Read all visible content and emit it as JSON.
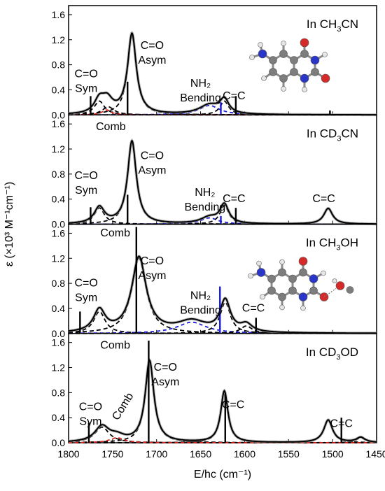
{
  "chart_data": {
    "type": "line",
    "xlabel": "E/hc (cm⁻¹)",
    "ylabel": "ε (×10³ M⁻¹cm⁻¹)",
    "xlim": [
      1800,
      1450
    ],
    "ylim": [
      0,
      1.7
    ],
    "xticks": [
      "1800",
      "1750",
      "1700",
      "1650",
      "1600",
      "1550",
      "1500",
      "1450"
    ],
    "yticks": [
      "0.0",
      "0.4",
      "0.8",
      "1.2",
      "1.6"
    ],
    "colors": {
      "exp": "#000000",
      "fit": "#000000",
      "nh2": "#1a1adb",
      "comb": "#e0201b",
      "grey": "#9a9a9a"
    },
    "panels": [
      {
        "solvent": {
          "pre": "In CH",
          "sub": "3",
          "post": "CN"
        },
        "peaks": [
          {
            "c": 1765,
            "h": 0.22,
            "w": 7,
            "k": "fit"
          },
          {
            "c": 1755,
            "h": 0.13,
            "w": 8,
            "k": "fit"
          },
          {
            "c": 1728,
            "h": 1.28,
            "w": 6,
            "k": "fit"
          },
          {
            "c": 1640,
            "h": 0.15,
            "w": 14,
            "k": "nh2"
          },
          {
            "c": 1623,
            "h": 0.22,
            "w": 6,
            "k": "fit"
          },
          {
            "c": 1757,
            "h": 0.08,
            "w": 6,
            "k": "comb"
          }
        ],
        "sticks": [
          {
            "x": 1775,
            "y": 0.3,
            "k": "exp"
          },
          {
            "x": 1733,
            "y": 0.53,
            "k": "exp"
          },
          {
            "x": 1627,
            "y": 0.2,
            "k": "nh2"
          },
          {
            "x": 1610,
            "y": 0.3,
            "k": "exp"
          },
          {
            "x": 1503,
            "y": 0.07,
            "k": "exp"
          }
        ],
        "labels": [
          {
            "id": "co-sym",
            "lines": [
              "C=O",
              "Sym"
            ],
            "x": 1780,
            "y": 0.6,
            "k": "exp"
          },
          {
            "id": "co-asym",
            "lines": [
              "C=O",
              "Asym"
            ],
            "x": 1705,
            "y": 1.05,
            "k": "exp"
          },
          {
            "id": "nh2",
            "lines": [
              "NH₂",
              "Bending"
            ],
            "x": 1650,
            "y": 0.45,
            "k": "nh2"
          },
          {
            "id": "cc",
            "lines": [
              "C=C"
            ],
            "x": 1612,
            "y": 0.25,
            "k": "exp"
          }
        ],
        "molecule": "uracil-aminated"
      },
      {
        "solvent": {
          "pre": "In CD",
          "sub": "3",
          "post": "CN"
        },
        "peaks": [
          {
            "c": 1765,
            "h": 0.26,
            "w": 7,
            "k": "fit"
          },
          {
            "c": 1728,
            "h": 1.32,
            "w": 6,
            "k": "fit"
          },
          {
            "c": 1640,
            "h": 0.1,
            "w": 12,
            "k": "nh2"
          },
          {
            "c": 1623,
            "h": 0.3,
            "w": 6,
            "k": "fit"
          },
          {
            "c": 1505,
            "h": 0.25,
            "w": 6,
            "k": "fit"
          }
        ],
        "sticks": [
          {
            "x": 1775,
            "y": 0.27,
            "k": "exp"
          },
          {
            "x": 1733,
            "y": 0.47,
            "k": "exp"
          },
          {
            "x": 1627,
            "y": 0.13,
            "k": "nh2"
          },
          {
            "x": 1610,
            "y": 0.26,
            "k": "exp"
          }
        ],
        "labels": [
          {
            "id": "comb",
            "lines": [
              "Comb"
            ],
            "x": 1752,
            "y": 1.5,
            "k": "comb"
          },
          {
            "id": "co-sym",
            "lines": [
              "C=O",
              "Sym"
            ],
            "x": 1780,
            "y": 0.72,
            "k": "exp"
          },
          {
            "id": "co-asym",
            "lines": [
              "C=O",
              "Asym"
            ],
            "x": 1705,
            "y": 1.04,
            "k": "exp"
          },
          {
            "id": "nh2",
            "lines": [
              "NH₂",
              "Bending"
            ],
            "x": 1645,
            "y": 0.45,
            "k": "nh2"
          },
          {
            "id": "cc",
            "lines": [
              "C=C"
            ],
            "x": 1612,
            "y": 0.35,
            "k": "exp"
          },
          {
            "id": "cc2",
            "lines": [
              "C=C"
            ],
            "x": 1510,
            "y": 0.35,
            "k": "exp"
          }
        ]
      },
      {
        "solvent": {
          "pre": "In CH",
          "sub": "3",
          "post": "OH"
        },
        "peaks": [
          {
            "c": 1765,
            "h": 0.35,
            "w": 8,
            "k": "fit"
          },
          {
            "c": 1720,
            "h": 1.2,
            "w": 10,
            "k": "fit"
          },
          {
            "c": 1660,
            "h": 0.18,
            "w": 20,
            "k": "nh2"
          },
          {
            "c": 1622,
            "h": 0.5,
            "w": 7,
            "k": "fit"
          },
          {
            "c": 1598,
            "h": 0.12,
            "w": 8,
            "k": "fit"
          }
        ],
        "sticks": [
          {
            "x": 1787,
            "y": 0.35,
            "k": "exp"
          },
          {
            "x": 1723,
            "y": 1.7,
            "k": "exp"
          },
          {
            "x": 1628,
            "y": 0.75,
            "k": "nh2"
          },
          {
            "x": 1587,
            "y": 0.25,
            "k": "exp"
          }
        ],
        "labels": [
          {
            "id": "comb",
            "lines": [
              "Comb"
            ],
            "x": 1747,
            "y": 1.55,
            "k": "comb"
          },
          {
            "id": "co-sym",
            "lines": [
              "C=O",
              "Sym"
            ],
            "x": 1780,
            "y": 0.75,
            "k": "exp"
          },
          {
            "id": "co-asym",
            "lines": [
              "C=O",
              "Asym"
            ],
            "x": 1705,
            "y": 1.1,
            "k": "exp"
          },
          {
            "id": "nh2",
            "lines": [
              "NH₂",
              "Bending"
            ],
            "x": 1650,
            "y": 0.55,
            "k": "nh2"
          },
          {
            "id": "cc",
            "lines": [
              "C=C"
            ],
            "x": 1590,
            "y": 0.35,
            "k": "exp"
          }
        ],
        "molecule": "uracil-hbond"
      },
      {
        "solvent": {
          "pre": "In CD",
          "sub": "3",
          "post": "OD"
        },
        "peaks": [
          {
            "c": 1762,
            "h": 0.25,
            "w": 10,
            "k": "fit"
          },
          {
            "c": 1708,
            "h": 1.3,
            "w": 6,
            "k": "fit"
          },
          {
            "c": 1623,
            "h": 0.82,
            "w": 5,
            "k": "fit"
          },
          {
            "c": 1505,
            "h": 0.36,
            "w": 6,
            "k": "fit"
          },
          {
            "c": 1468,
            "h": 0.08,
            "w": 6,
            "k": "fit"
          },
          {
            "c": 1745,
            "h": 0.08,
            "w": 10,
            "k": "comb"
          }
        ],
        "sticks": [
          {
            "x": 1777,
            "y": 0.32,
            "k": "exp"
          },
          {
            "x": 1709,
            "y": 1.63,
            "k": "exp"
          },
          {
            "x": 1622,
            "y": 0.78,
            "k": "exp"
          },
          {
            "x": 1490,
            "y": 0.4,
            "k": "exp"
          }
        ],
        "labels": [
          {
            "id": "comb",
            "lines": [
              "Comb"
            ],
            "x": 1747,
            "y": 1.5,
            "k": "comb"
          },
          {
            "id": "co-sym",
            "lines": [
              "C=O",
              "Sym"
            ],
            "x": 1775,
            "y": 0.52,
            "k": "exp"
          },
          {
            "id": "co-asym",
            "lines": [
              "C=O",
              "Asym"
            ],
            "x": 1690,
            "y": 1.15,
            "k": "exp"
          },
          {
            "id": "cc",
            "lines": [
              "C=C"
            ],
            "x": 1613,
            "y": 0.55,
            "k": "exp"
          },
          {
            "id": "cc2",
            "lines": [
              "C=C"
            ],
            "x": 1490,
            "y": 0.25,
            "k": "exp"
          },
          {
            "id": "comb-rot",
            "lines": [
              "Comb"
            ],
            "x": 1735,
            "y": 0.55,
            "k": "comb",
            "rotate": true
          }
        ]
      }
    ]
  }
}
